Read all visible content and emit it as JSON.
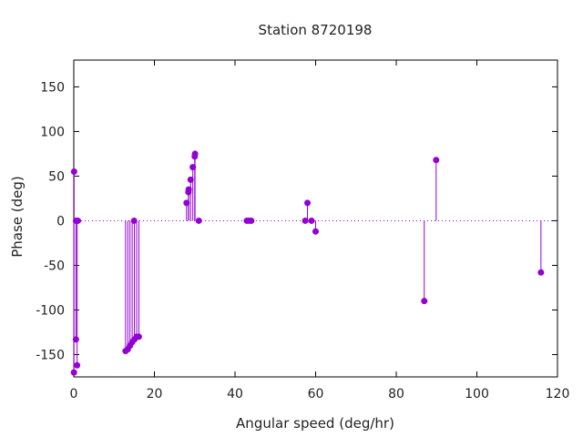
{
  "chart_data": {
    "type": "scatter",
    "style": "impulses-with-points",
    "title": "Station 8720198",
    "xlabel": "Angular speed (deg/hr)",
    "ylabel": "Phase (deg)",
    "xlim": [
      0,
      120
    ],
    "ylim": [
      -175,
      180
    ],
    "xticks": [
      0,
      20,
      40,
      60,
      80,
      100,
      120
    ],
    "yticks": [
      -150,
      -100,
      -50,
      0,
      50,
      100,
      150
    ],
    "zero_line": true,
    "grid": false,
    "color": "#9400d3",
    "x": [
      0.04,
      0.08,
      0.54,
      0.55,
      0.82,
      1.02,
      12.85,
      13.4,
      13.94,
      14.49,
      14.96,
      15.04,
      15.59,
      16.14,
      27.97,
      28.44,
      28.51,
      28.98,
      29.53,
      30.0,
      30.08,
      31.02,
      42.93,
      43.48,
      44.03,
      57.42,
      57.97,
      58.98,
      60.0,
      86.95,
      89.9,
      115.9
    ],
    "y": [
      -170,
      55,
      -133,
      0,
      -162,
      0,
      -146,
      -144,
      -140,
      -136,
      0,
      -133,
      -130,
      -130,
      20,
      32,
      35,
      46,
      60,
      72,
      75,
      0,
      0,
      0,
      0,
      0,
      20,
      0,
      -12,
      -90,
      68,
      -58
    ]
  }
}
